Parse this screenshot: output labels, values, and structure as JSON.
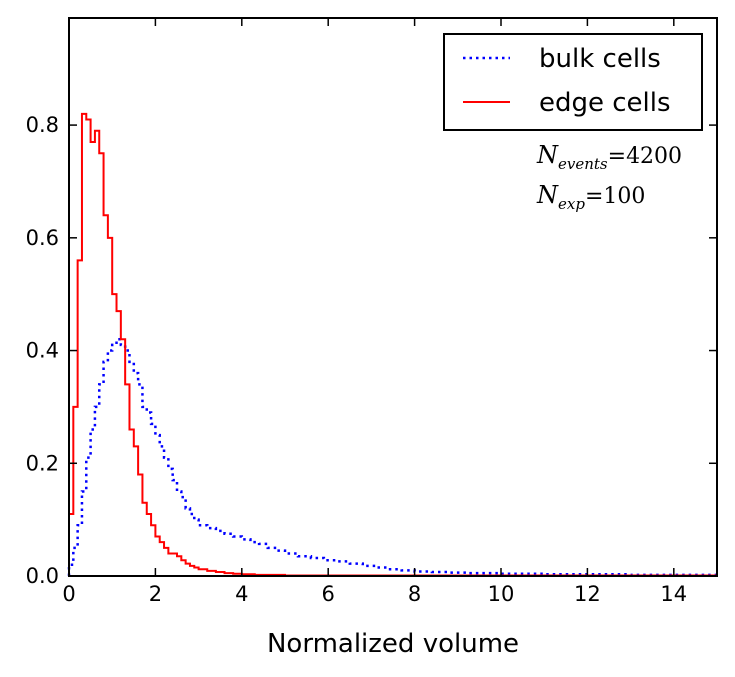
{
  "chart_data": {
    "type": "line",
    "title": "",
    "xlabel": "Normalized volume",
    "ylabel": "",
    "xlim": [
      0,
      15
    ],
    "ylim": [
      0,
      0.99
    ],
    "grid": false,
    "x_ticks": [
      0,
      2,
      4,
      6,
      8,
      10,
      12,
      14
    ],
    "x_tick_labels": [
      "0",
      "2",
      "4",
      "6",
      "8",
      "10",
      "12",
      "14"
    ],
    "y_ticks": [
      0.0,
      0.2,
      0.4,
      0.6,
      0.8
    ],
    "y_tick_labels": [
      "0.0",
      "0.2",
      "0.4",
      "0.6",
      "0.8"
    ],
    "legend_position": "top-right",
    "annotations": [
      {
        "symbol": "N",
        "subscript": "events",
        "relation": "=",
        "value": "4200"
      },
      {
        "symbol": "N",
        "subscript": "exp",
        "relation": "=",
        "value": "100"
      }
    ],
    "bin_width": 0.1,
    "series": [
      {
        "name": "bulk cells",
        "style": "dotted",
        "color": "#0000ff",
        "edges": [
          0,
          0.1,
          0.2,
          0.3,
          0.4,
          0.5,
          0.6,
          0.7,
          0.8,
          0.9,
          1.0,
          1.1,
          1.2,
          1.3,
          1.4,
          1.5,
          1.6,
          1.7,
          1.8,
          1.9,
          2.0,
          2.1,
          2.2,
          2.3,
          2.4,
          2.5,
          2.6,
          2.7,
          2.8,
          2.9,
          3.0,
          3.2,
          3.4,
          3.6,
          3.8,
          4.0,
          4.2,
          4.4,
          4.6,
          4.8,
          5.0,
          5.3,
          5.6,
          5.9,
          6.2,
          6.5,
          6.8,
          7.1,
          7.4,
          7.7,
          8.0,
          8.4,
          8.8,
          9.2,
          9.6,
          10.0,
          10.5,
          11.0,
          11.5,
          12.0,
          12.5,
          13.0,
          13.5,
          14.0,
          14.5,
          15.0
        ],
        "values": [
          0.02,
          0.05,
          0.09,
          0.15,
          0.21,
          0.26,
          0.3,
          0.34,
          0.38,
          0.4,
          0.41,
          0.42,
          0.41,
          0.4,
          0.38,
          0.36,
          0.34,
          0.3,
          0.29,
          0.27,
          0.25,
          0.23,
          0.21,
          0.19,
          0.17,
          0.15,
          0.14,
          0.12,
          0.11,
          0.1,
          0.09,
          0.085,
          0.08,
          0.075,
          0.07,
          0.065,
          0.06,
          0.057,
          0.05,
          0.045,
          0.04,
          0.035,
          0.032,
          0.028,
          0.026,
          0.022,
          0.018,
          0.015,
          0.012,
          0.01,
          0.008,
          0.007,
          0.006,
          0.005,
          0.005,
          0.004,
          0.004,
          0.003,
          0.003,
          0.003,
          0.003,
          0.002,
          0.002,
          0.002,
          0.002
        ]
      },
      {
        "name": "edge cells",
        "style": "solid",
        "color": "#ff0000",
        "edges": [
          0,
          0.1,
          0.2,
          0.3,
          0.4,
          0.5,
          0.6,
          0.7,
          0.8,
          0.9,
          1.0,
          1.1,
          1.2,
          1.3,
          1.4,
          1.5,
          1.6,
          1.7,
          1.8,
          1.9,
          2.0,
          2.1,
          2.2,
          2.3,
          2.4,
          2.5,
          2.6,
          2.7,
          2.8,
          2.9,
          3.0,
          3.2,
          3.4,
          3.6,
          3.8,
          4.0,
          4.3,
          4.6,
          5.0,
          5.5,
          6.0,
          7.0,
          8.0,
          10.0,
          15.0
        ],
        "values": [
          0.11,
          0.3,
          0.56,
          0.82,
          0.81,
          0.77,
          0.79,
          0.75,
          0.64,
          0.6,
          0.5,
          0.47,
          0.42,
          0.34,
          0.26,
          0.23,
          0.18,
          0.13,
          0.11,
          0.09,
          0.07,
          0.06,
          0.05,
          0.04,
          0.04,
          0.035,
          0.028,
          0.022,
          0.018,
          0.015,
          0.012,
          0.009,
          0.007,
          0.005,
          0.004,
          0.003,
          0.002,
          0.002,
          0.001,
          0.001,
          0.001,
          0.001,
          0.001,
          0.001
        ]
      }
    ]
  }
}
